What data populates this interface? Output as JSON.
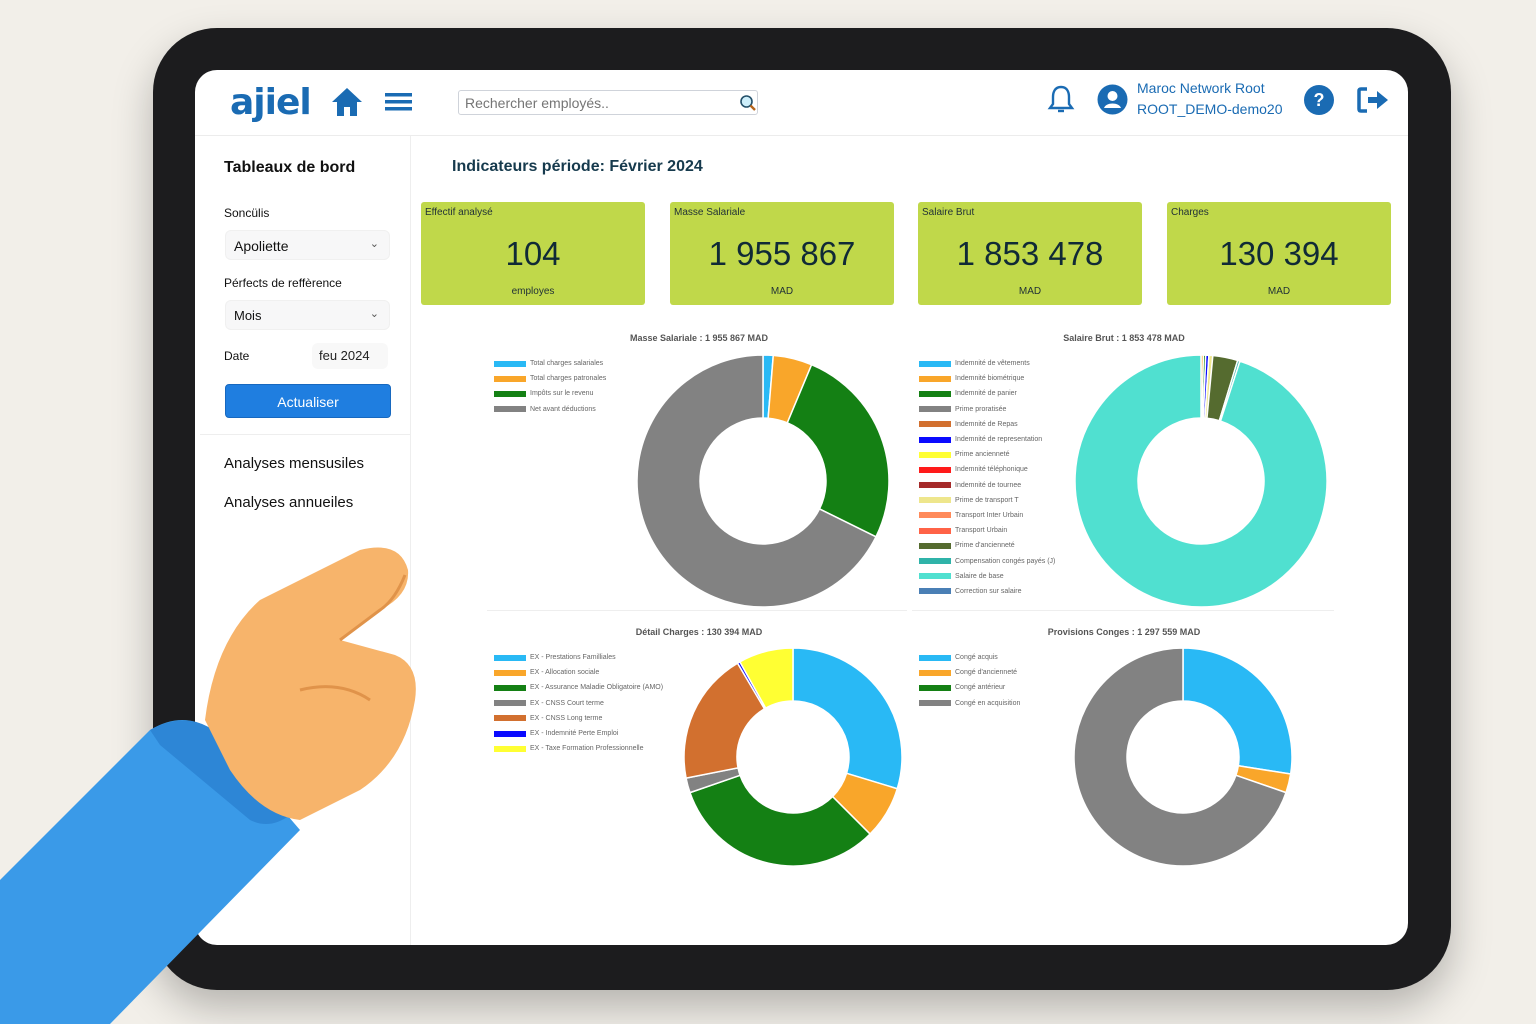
{
  "header": {
    "logo": "ajiel",
    "search_placeholder": "Rechercher employés..",
    "user_name": "Maroc Network Root",
    "user_account": "ROOT_DEMO-demo20"
  },
  "sidebar": {
    "title": "Tableaux de bord",
    "company_label": "Soncülis",
    "company_value": "Apoliette",
    "period_label": "Pérfects de reffèrence",
    "period_value": "Mois",
    "date_label": "Date",
    "date_value": "feu 2024",
    "refresh_label": "Actualiser",
    "nav": [
      {
        "label": "Analyses mensusiles"
      },
      {
        "label": "Analyses annueiles"
      }
    ]
  },
  "main": {
    "period_title": "Indicateurs période: Février 2024",
    "kpis": [
      {
        "title": "Effectif analysé",
        "value": "104",
        "unit": "employes"
      },
      {
        "title": "Masse Salariale",
        "value": "1 955 867",
        "unit": "MAD"
      },
      {
        "title": "Salaire Brut",
        "value": "1 853 478",
        "unit": "MAD"
      },
      {
        "title": "Charges",
        "value": "130 394",
        "unit": "MAD"
      }
    ]
  },
  "chart_data": [
    {
      "type": "pie",
      "donut": true,
      "title": "Masse Salariale : 1 955 867 MAD",
      "legend": "left",
      "categories": [
        "Total charges salariales",
        "Total charges patronales",
        "Impôts sur le revenu",
        "Net avant déductions"
      ],
      "values_percent": [
        1.3,
        5,
        26,
        67.7
      ],
      "colors": [
        "#29b9f5",
        "#f9a62a",
        "#148014",
        "#828282"
      ]
    },
    {
      "type": "pie",
      "donut": true,
      "title": "Salaire Brut : 1 853 478 MAD",
      "legend": "left",
      "categories": [
        "Indemnité de vêtements",
        "Indemnité biométrique",
        "Indemnité de panier",
        "Prime proratisée",
        "Indemnité de Repas",
        "Indemnité de representation",
        "Prime ancienneté",
        "Indemnité téléphonique",
        "Indemnité de tournee",
        "Prime de transport T",
        "Transport Inter Urbain",
        "Transport Urbain",
        "Prime d'ancienneté",
        "Compensation congés payés (J)",
        "Salaire de base",
        "Correction sur salaire"
      ],
      "values_percent": [
        0,
        0.3,
        0.3,
        0,
        0,
        0.4,
        0,
        0,
        0,
        0.5,
        0,
        0,
        3.2,
        0.3,
        95,
        0
      ],
      "colors": [
        "#29b9f5",
        "#f9a62a",
        "#148014",
        "#828282",
        "#d2702f",
        "#0a0aff",
        "#ffff33",
        "#ff1a1a",
        "#a52a2a",
        "#eee68c",
        "#ff8a5a",
        "#ff6347",
        "#556b2f",
        "#2fb3a9",
        "#50e0d0",
        "#4a7fb5"
      ]
    },
    {
      "type": "pie",
      "donut": true,
      "title": "Détail Charges : 130 394 MAD",
      "legend": "left",
      "categories": [
        "EX - Prestations Familliales",
        "EX - Allocation sociale",
        "EX - Assurance Maladie Obligatoire (AMO)",
        "EX - CNSS Court terme",
        "EX - CNSS Long terme",
        "EX - Indemnité Perte Emploi",
        "EX - Taxe Formation Professionnelle"
      ],
      "values_percent": [
        29.7,
        7.8,
        32.2,
        2.2,
        19.6,
        0.4,
        8.1
      ],
      "colors": [
        "#29b9f5",
        "#f9a62a",
        "#148014",
        "#828282",
        "#d2702f",
        "#0a0aff",
        "#ffff33"
      ]
    },
    {
      "type": "pie",
      "donut": true,
      "title": "Provisions Conges : 1 297 559 MAD",
      "legend": "left",
      "categories": [
        "Congé acquis",
        "Congé d'ancienneté",
        "Congé antérieur",
        "Congé en acquisition"
      ],
      "values_percent": [
        27.5,
        2.8,
        0,
        69.7
      ],
      "colors": [
        "#29b9f5",
        "#f9a62a",
        "#148014",
        "#828282"
      ]
    }
  ]
}
